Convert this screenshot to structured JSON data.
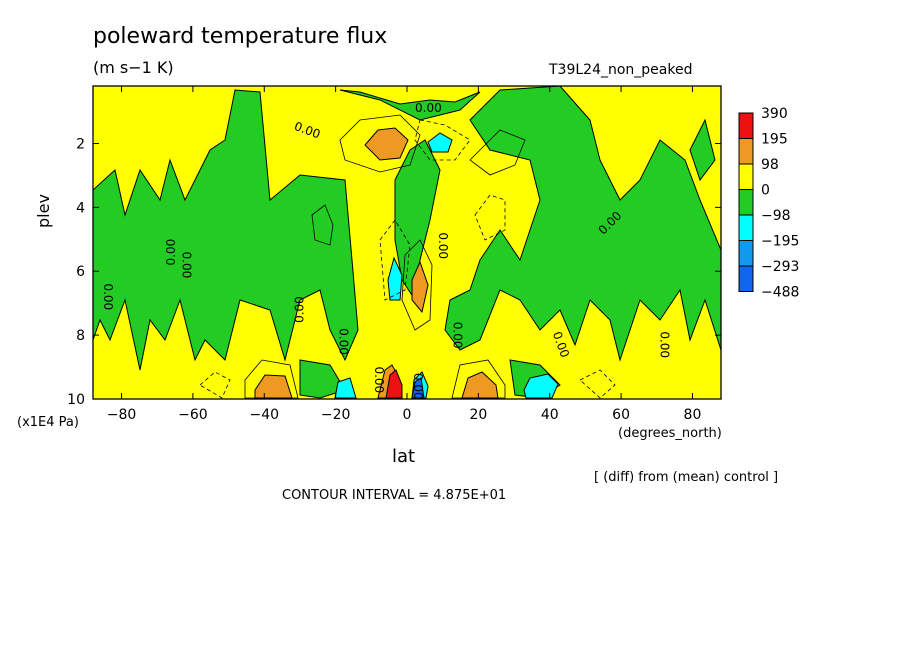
{
  "chart_data": {
    "type": "heatmap",
    "subtype": "filled-contour",
    "title": "poleward temperature flux",
    "units": "(m s−1 K)",
    "run_label": "T39L24_non_peaked",
    "xlabel": "lat",
    "x_unit_note": "(degrees_north)",
    "ylabel": "plev",
    "y_unit_note": "(x1E4 Pa)",
    "xlim": [
      -88,
      88
    ],
    "ylim": [
      10,
      0.2
    ],
    "x_ticks": [
      -80,
      -60,
      -40,
      -20,
      0,
      20,
      40,
      60,
      80
    ],
    "x_tick_labels": [
      "−80",
      "−60",
      "−40",
      "−20",
      "0",
      "20",
      "40",
      "60",
      "80"
    ],
    "y_ticks": [
      2,
      4,
      6,
      8,
      10
    ],
    "y_tick_labels": [
      "2",
      "4",
      "6",
      "8",
      "10"
    ],
    "legend": {
      "placement": "right",
      "labels": [
        "390",
        "195",
        "98",
        "0",
        "−98",
        "−195",
        "−293",
        "−488"
      ],
      "colors": [
        "#ee1111",
        "#ee9922",
        "#ffff00",
        "#22cc22",
        "#00ffff",
        "#1199ee",
        "#1166ee"
      ]
    },
    "contour_label": "0.00",
    "diff_note": "[ (diff) from (mean) control ]",
    "contour_interval_text": "CONTOUR INTERVAL = 4.875E+01",
    "colors": {
      "strong_pos": "#ee1111",
      "pos": "#ee9922",
      "weak_pos": "#ffff00",
      "weak_neg": "#22cc22",
      "neg": "#00ffff",
      "strong_neg": "#1166ee"
    }
  }
}
